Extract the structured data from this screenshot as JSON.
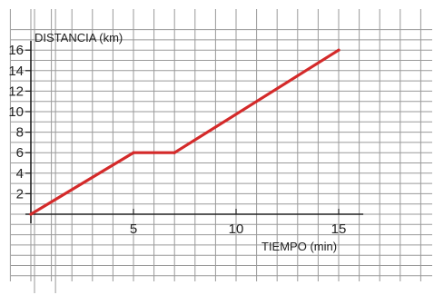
{
  "chart_data": {
    "type": "line",
    "xlabel": "TIEMPO (min)",
    "ylabel": "DISTANCIA (km)",
    "xlim": [
      0,
      15
    ],
    "ylim": [
      0,
      16
    ],
    "x_ticks": [
      5,
      10,
      15
    ],
    "y_ticks": [
      2,
      4,
      6,
      8,
      10,
      12,
      14,
      16
    ],
    "grid": true,
    "series": [
      {
        "color": "#d42a2a",
        "points": [
          {
            "x": 0,
            "y": 0
          },
          {
            "x": 5,
            "y": 6
          },
          {
            "x": 7,
            "y": 6
          },
          {
            "x": 15,
            "y": 16
          }
        ]
      }
    ]
  }
}
